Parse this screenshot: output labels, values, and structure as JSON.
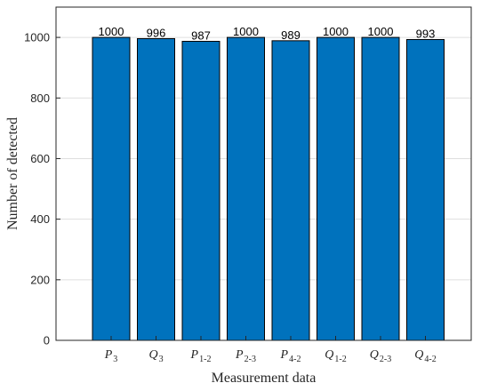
{
  "chart_data": {
    "type": "bar",
    "categories": [
      {
        "base": "P",
        "sub": "3"
      },
      {
        "base": "Q",
        "sub": "3"
      },
      {
        "base": "P",
        "sub": "1-2"
      },
      {
        "base": "P",
        "sub": "2-3"
      },
      {
        "base": "P",
        "sub": "4-2"
      },
      {
        "base": "Q",
        "sub": "1-2"
      },
      {
        "base": "Q",
        "sub": "2-3"
      },
      {
        "base": "Q",
        "sub": "4-2"
      }
    ],
    "values": [
      1000,
      996,
      987,
      1000,
      989,
      1000,
      1000,
      993
    ],
    "xlabel": "Measurement data",
    "ylabel": "Number of detected",
    "ylim": [
      0,
      1100
    ],
    "yticks": [
      0,
      200,
      400,
      600,
      800,
      1000
    ],
    "grid": true,
    "bar_color": "#0072BD",
    "bar_edge_color": "#000000"
  }
}
